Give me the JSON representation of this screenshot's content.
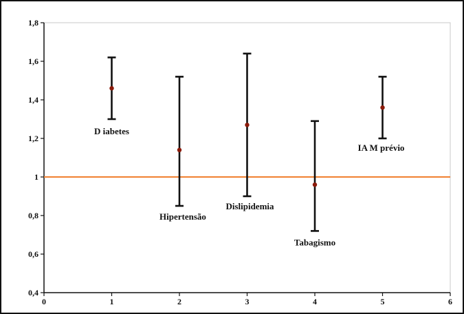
{
  "chart_data": {
    "type": "scatter",
    "title": "",
    "xlabel": "",
    "ylabel": "",
    "xlim": [
      0,
      6
    ],
    "ylim": [
      0.4,
      1.8
    ],
    "x_ticks": [
      "0",
      "1",
      "2",
      "3",
      "4",
      "5",
      "6"
    ],
    "y_ticks": [
      "0,4",
      "0,6",
      "0,8",
      "1",
      "1,2",
      "1,4",
      "1,6",
      "1,8"
    ],
    "grid": false,
    "reference_line": {
      "y": 1,
      "color": "#f08030"
    },
    "colors": {
      "point": "#8b1a0a",
      "error_bar": "#111111",
      "axis": "#111111",
      "plot_border": "#c8c8c8"
    },
    "points": [
      {
        "x": 1,
        "y": 1.46,
        "lower": 1.3,
        "upper": 1.62,
        "label": "D iabetes"
      },
      {
        "x": 2,
        "y": 1.14,
        "lower": 0.85,
        "upper": 1.52,
        "label": "Hipertensão"
      },
      {
        "x": 3,
        "y": 1.27,
        "lower": 0.9,
        "upper": 1.64,
        "label": "Dislipidemia"
      },
      {
        "x": 4,
        "y": 0.96,
        "lower": 0.72,
        "upper": 1.29,
        "label": "Tabagismo"
      },
      {
        "x": 5,
        "y": 1.36,
        "lower": 1.2,
        "upper": 1.52,
        "label": "IA M prévio"
      }
    ]
  }
}
